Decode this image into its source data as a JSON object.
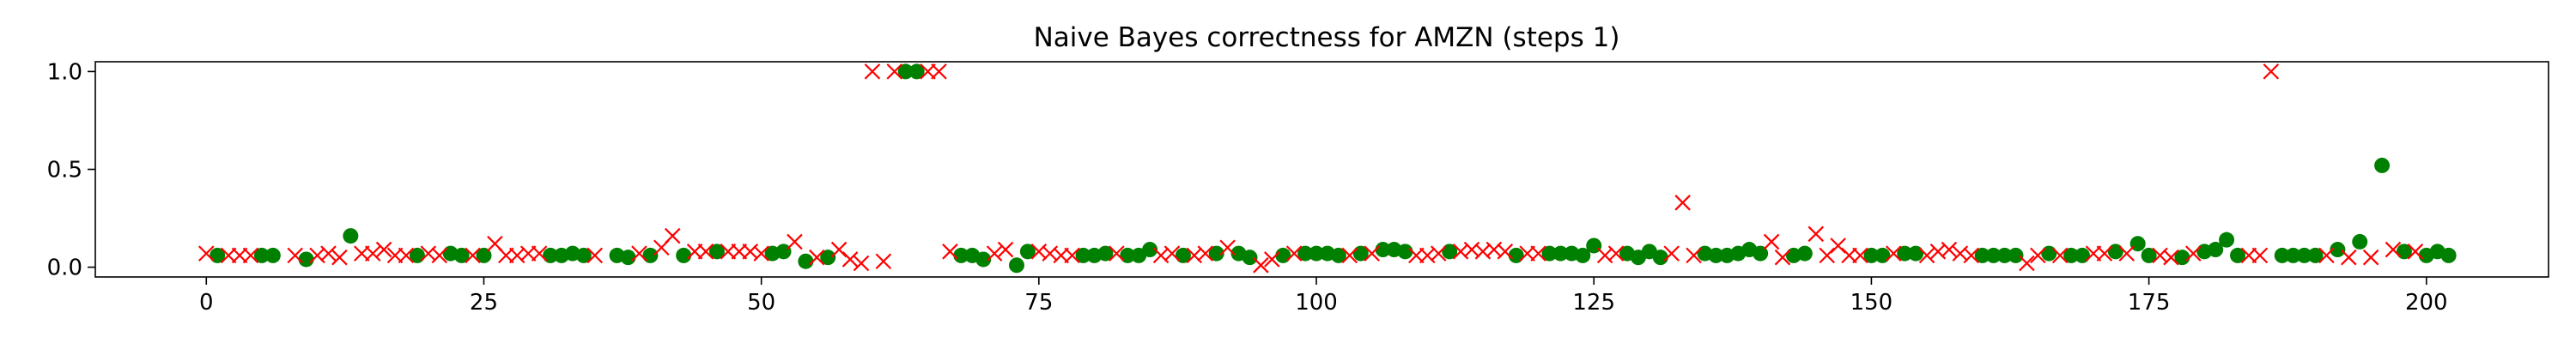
{
  "chart_data": {
    "type": "scatter",
    "title": "Naive Bayes correctness for AMZN (steps 1)",
    "xlabel": "",
    "ylabel": "",
    "xlim": [
      -10,
      211
    ],
    "ylim": [
      -0.05,
      1.05
    ],
    "x_ticks": [
      0,
      25,
      50,
      75,
      100,
      125,
      150,
      175,
      200
    ],
    "y_ticks": [
      0.0,
      0.5,
      1.0
    ],
    "x_tick_labels": [
      "0",
      "25",
      "50",
      "75",
      "100",
      "125",
      "150",
      "175",
      "200"
    ],
    "y_tick_labels": [
      "0.0",
      "0.5",
      "1.0"
    ],
    "grid": false,
    "legend": "none",
    "colors": {
      "correct": "#008000",
      "incorrect": "#ff0000"
    },
    "series": [
      {
        "marker": "circle",
        "color": "#008000",
        "points": [
          [
            1,
            0.06
          ],
          [
            5,
            0.06
          ],
          [
            6,
            0.06
          ],
          [
            9,
            0.04
          ],
          [
            13,
            0.16
          ],
          [
            19,
            0.06
          ],
          [
            22,
            0.07
          ],
          [
            23,
            0.06
          ],
          [
            25,
            0.06
          ],
          [
            31,
            0.06
          ],
          [
            32,
            0.06
          ],
          [
            33,
            0.07
          ],
          [
            34,
            0.06
          ],
          [
            37,
            0.06
          ],
          [
            38,
            0.05
          ],
          [
            40,
            0.06
          ],
          [
            43,
            0.06
          ],
          [
            46,
            0.08
          ],
          [
            51,
            0.07
          ],
          [
            52,
            0.08
          ],
          [
            54,
            0.03
          ],
          [
            56,
            0.05
          ],
          [
            63,
            1.0
          ],
          [
            64,
            1.0
          ],
          [
            68,
            0.06
          ],
          [
            69,
            0.06
          ],
          [
            70,
            0.04
          ],
          [
            73,
            0.01
          ],
          [
            74,
            0.08
          ],
          [
            79,
            0.06
          ],
          [
            80,
            0.06
          ],
          [
            81,
            0.07
          ],
          [
            83,
            0.06
          ],
          [
            84,
            0.06
          ],
          [
            85,
            0.09
          ],
          [
            88,
            0.06
          ],
          [
            91,
            0.07
          ],
          [
            93,
            0.07
          ],
          [
            94,
            0.05
          ],
          [
            97,
            0.06
          ],
          [
            99,
            0.07
          ],
          [
            100,
            0.07
          ],
          [
            101,
            0.07
          ],
          [
            102,
            0.06
          ],
          [
            104,
            0.07
          ],
          [
            106,
            0.09
          ],
          [
            107,
            0.09
          ],
          [
            108,
            0.08
          ],
          [
            112,
            0.08
          ],
          [
            118,
            0.06
          ],
          [
            121,
            0.07
          ],
          [
            122,
            0.07
          ],
          [
            123,
            0.07
          ],
          [
            124,
            0.06
          ],
          [
            125,
            0.11
          ],
          [
            128,
            0.07
          ],
          [
            129,
            0.05
          ],
          [
            130,
            0.08
          ],
          [
            131,
            0.05
          ],
          [
            135,
            0.07
          ],
          [
            136,
            0.06
          ],
          [
            137,
            0.06
          ],
          [
            138,
            0.07
          ],
          [
            139,
            0.09
          ],
          [
            140,
            0.07
          ],
          [
            143,
            0.06
          ],
          [
            144,
            0.07
          ],
          [
            150,
            0.06
          ],
          [
            151,
            0.06
          ],
          [
            153,
            0.07
          ],
          [
            154,
            0.07
          ],
          [
            160,
            0.06
          ],
          [
            161,
            0.06
          ],
          [
            162,
            0.06
          ],
          [
            163,
            0.06
          ],
          [
            166,
            0.07
          ],
          [
            168,
            0.06
          ],
          [
            169,
            0.06
          ],
          [
            172,
            0.08
          ],
          [
            174,
            0.12
          ],
          [
            175,
            0.06
          ],
          [
            178,
            0.05
          ],
          [
            180,
            0.08
          ],
          [
            181,
            0.09
          ],
          [
            182,
            0.14
          ],
          [
            183,
            0.06
          ],
          [
            187,
            0.06
          ],
          [
            188,
            0.06
          ],
          [
            189,
            0.06
          ],
          [
            190,
            0.06
          ],
          [
            192,
            0.09
          ],
          [
            194,
            0.13
          ],
          [
            196,
            0.52
          ],
          [
            198,
            0.08
          ],
          [
            200,
            0.06
          ],
          [
            201,
            0.08
          ],
          [
            202,
            0.06
          ]
        ]
      },
      {
        "marker": "x",
        "color": "#ff0000",
        "points": [
          [
            0,
            0.07
          ],
          [
            2,
            0.06
          ],
          [
            3,
            0.06
          ],
          [
            4,
            0.06
          ],
          [
            8,
            0.06
          ],
          [
            10,
            0.06
          ],
          [
            11,
            0.07
          ],
          [
            12,
            0.05
          ],
          [
            14,
            0.07
          ],
          [
            15,
            0.07
          ],
          [
            16,
            0.09
          ],
          [
            17,
            0.06
          ],
          [
            18,
            0.06
          ],
          [
            20,
            0.07
          ],
          [
            21,
            0.06
          ],
          [
            24,
            0.06
          ],
          [
            26,
            0.12
          ],
          [
            27,
            0.06
          ],
          [
            28,
            0.06
          ],
          [
            29,
            0.07
          ],
          [
            30,
            0.07
          ],
          [
            35,
            0.06
          ],
          [
            39,
            0.07
          ],
          [
            41,
            0.1
          ],
          [
            42,
            0.16
          ],
          [
            44,
            0.08
          ],
          [
            45,
            0.08
          ],
          [
            47,
            0.08
          ],
          [
            48,
            0.08
          ],
          [
            49,
            0.08
          ],
          [
            50,
            0.07
          ],
          [
            53,
            0.13
          ],
          [
            55,
            0.05
          ],
          [
            57,
            0.09
          ],
          [
            58,
            0.04
          ],
          [
            59,
            0.02
          ],
          [
            60,
            1.0
          ],
          [
            61,
            0.03
          ],
          [
            62,
            1.0
          ],
          [
            65,
            1.0
          ],
          [
            66,
            1.0
          ],
          [
            67,
            0.08
          ],
          [
            71,
            0.07
          ],
          [
            72,
            0.09
          ],
          [
            75,
            0.08
          ],
          [
            76,
            0.07
          ],
          [
            77,
            0.06
          ],
          [
            78,
            0.06
          ],
          [
            82,
            0.07
          ],
          [
            86,
            0.06
          ],
          [
            87,
            0.07
          ],
          [
            89,
            0.06
          ],
          [
            90,
            0.07
          ],
          [
            92,
            0.1
          ],
          [
            95,
            0.01
          ],
          [
            96,
            0.04
          ],
          [
            98,
            0.07
          ],
          [
            103,
            0.06
          ],
          [
            105,
            0.07
          ],
          [
            109,
            0.06
          ],
          [
            110,
            0.06
          ],
          [
            111,
            0.07
          ],
          [
            113,
            0.08
          ],
          [
            114,
            0.09
          ],
          [
            115,
            0.08
          ],
          [
            116,
            0.09
          ],
          [
            117,
            0.08
          ],
          [
            119,
            0.07
          ],
          [
            120,
            0.07
          ],
          [
            126,
            0.06
          ],
          [
            127,
            0.07
          ],
          [
            132,
            0.07
          ],
          [
            133,
            0.33
          ],
          [
            134,
            0.06
          ],
          [
            141,
            0.13
          ],
          [
            142,
            0.05
          ],
          [
            145,
            0.17
          ],
          [
            146,
            0.06
          ],
          [
            147,
            0.11
          ],
          [
            148,
            0.06
          ],
          [
            149,
            0.06
          ],
          [
            152,
            0.07
          ],
          [
            155,
            0.06
          ],
          [
            156,
            0.08
          ],
          [
            157,
            0.09
          ],
          [
            158,
            0.07
          ],
          [
            159,
            0.06
          ],
          [
            164,
            0.02
          ],
          [
            165,
            0.06
          ],
          [
            167,
            0.06
          ],
          [
            170,
            0.07
          ],
          [
            171,
            0.07
          ],
          [
            173,
            0.07
          ],
          [
            176,
            0.06
          ],
          [
            177,
            0.05
          ],
          [
            179,
            0.07
          ],
          [
            184,
            0.06
          ],
          [
            185,
            0.06
          ],
          [
            186,
            1.0
          ],
          [
            191,
            0.06
          ],
          [
            193,
            0.05
          ],
          [
            195,
            0.05
          ],
          [
            197,
            0.09
          ],
          [
            199,
            0.08
          ]
        ]
      }
    ]
  }
}
